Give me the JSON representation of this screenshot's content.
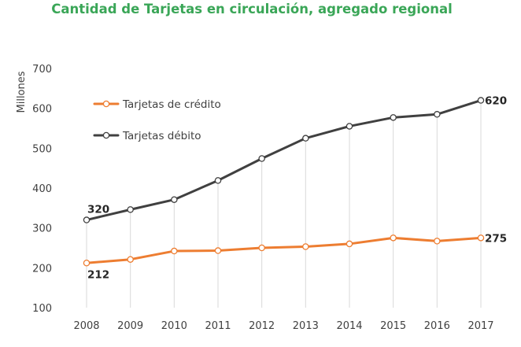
{
  "chart_data": {
    "type": "line",
    "title": "Cantidad de Tarjetas en circulación, agregado regional",
    "xlabel": "",
    "ylabel": "Millones",
    "categories": [
      "2008",
      "2009",
      "2010",
      "2011",
      "2012",
      "2013",
      "2014",
      "2015",
      "2016",
      "2017"
    ],
    "ylim": [
      100,
      700
    ],
    "yticks": [
      100,
      200,
      300,
      400,
      500,
      600,
      700
    ],
    "grid": "vertical drop lines at each category",
    "legend_position": "top-left",
    "series": [
      {
        "name": "Tarjetas de crédito",
        "color": "#ed7d31",
        "values": [
          212,
          221,
          242,
          243,
          250,
          253,
          260,
          275,
          267,
          275
        ],
        "labels": {
          "first": "212",
          "last": "275"
        }
      },
      {
        "name": "Tarjetas débito",
        "color": "#404040",
        "values": [
          320,
          346,
          371,
          419,
          474,
          525,
          555,
          577,
          585,
          620
        ],
        "labels": {
          "first": "320",
          "last": "620"
        }
      }
    ]
  }
}
